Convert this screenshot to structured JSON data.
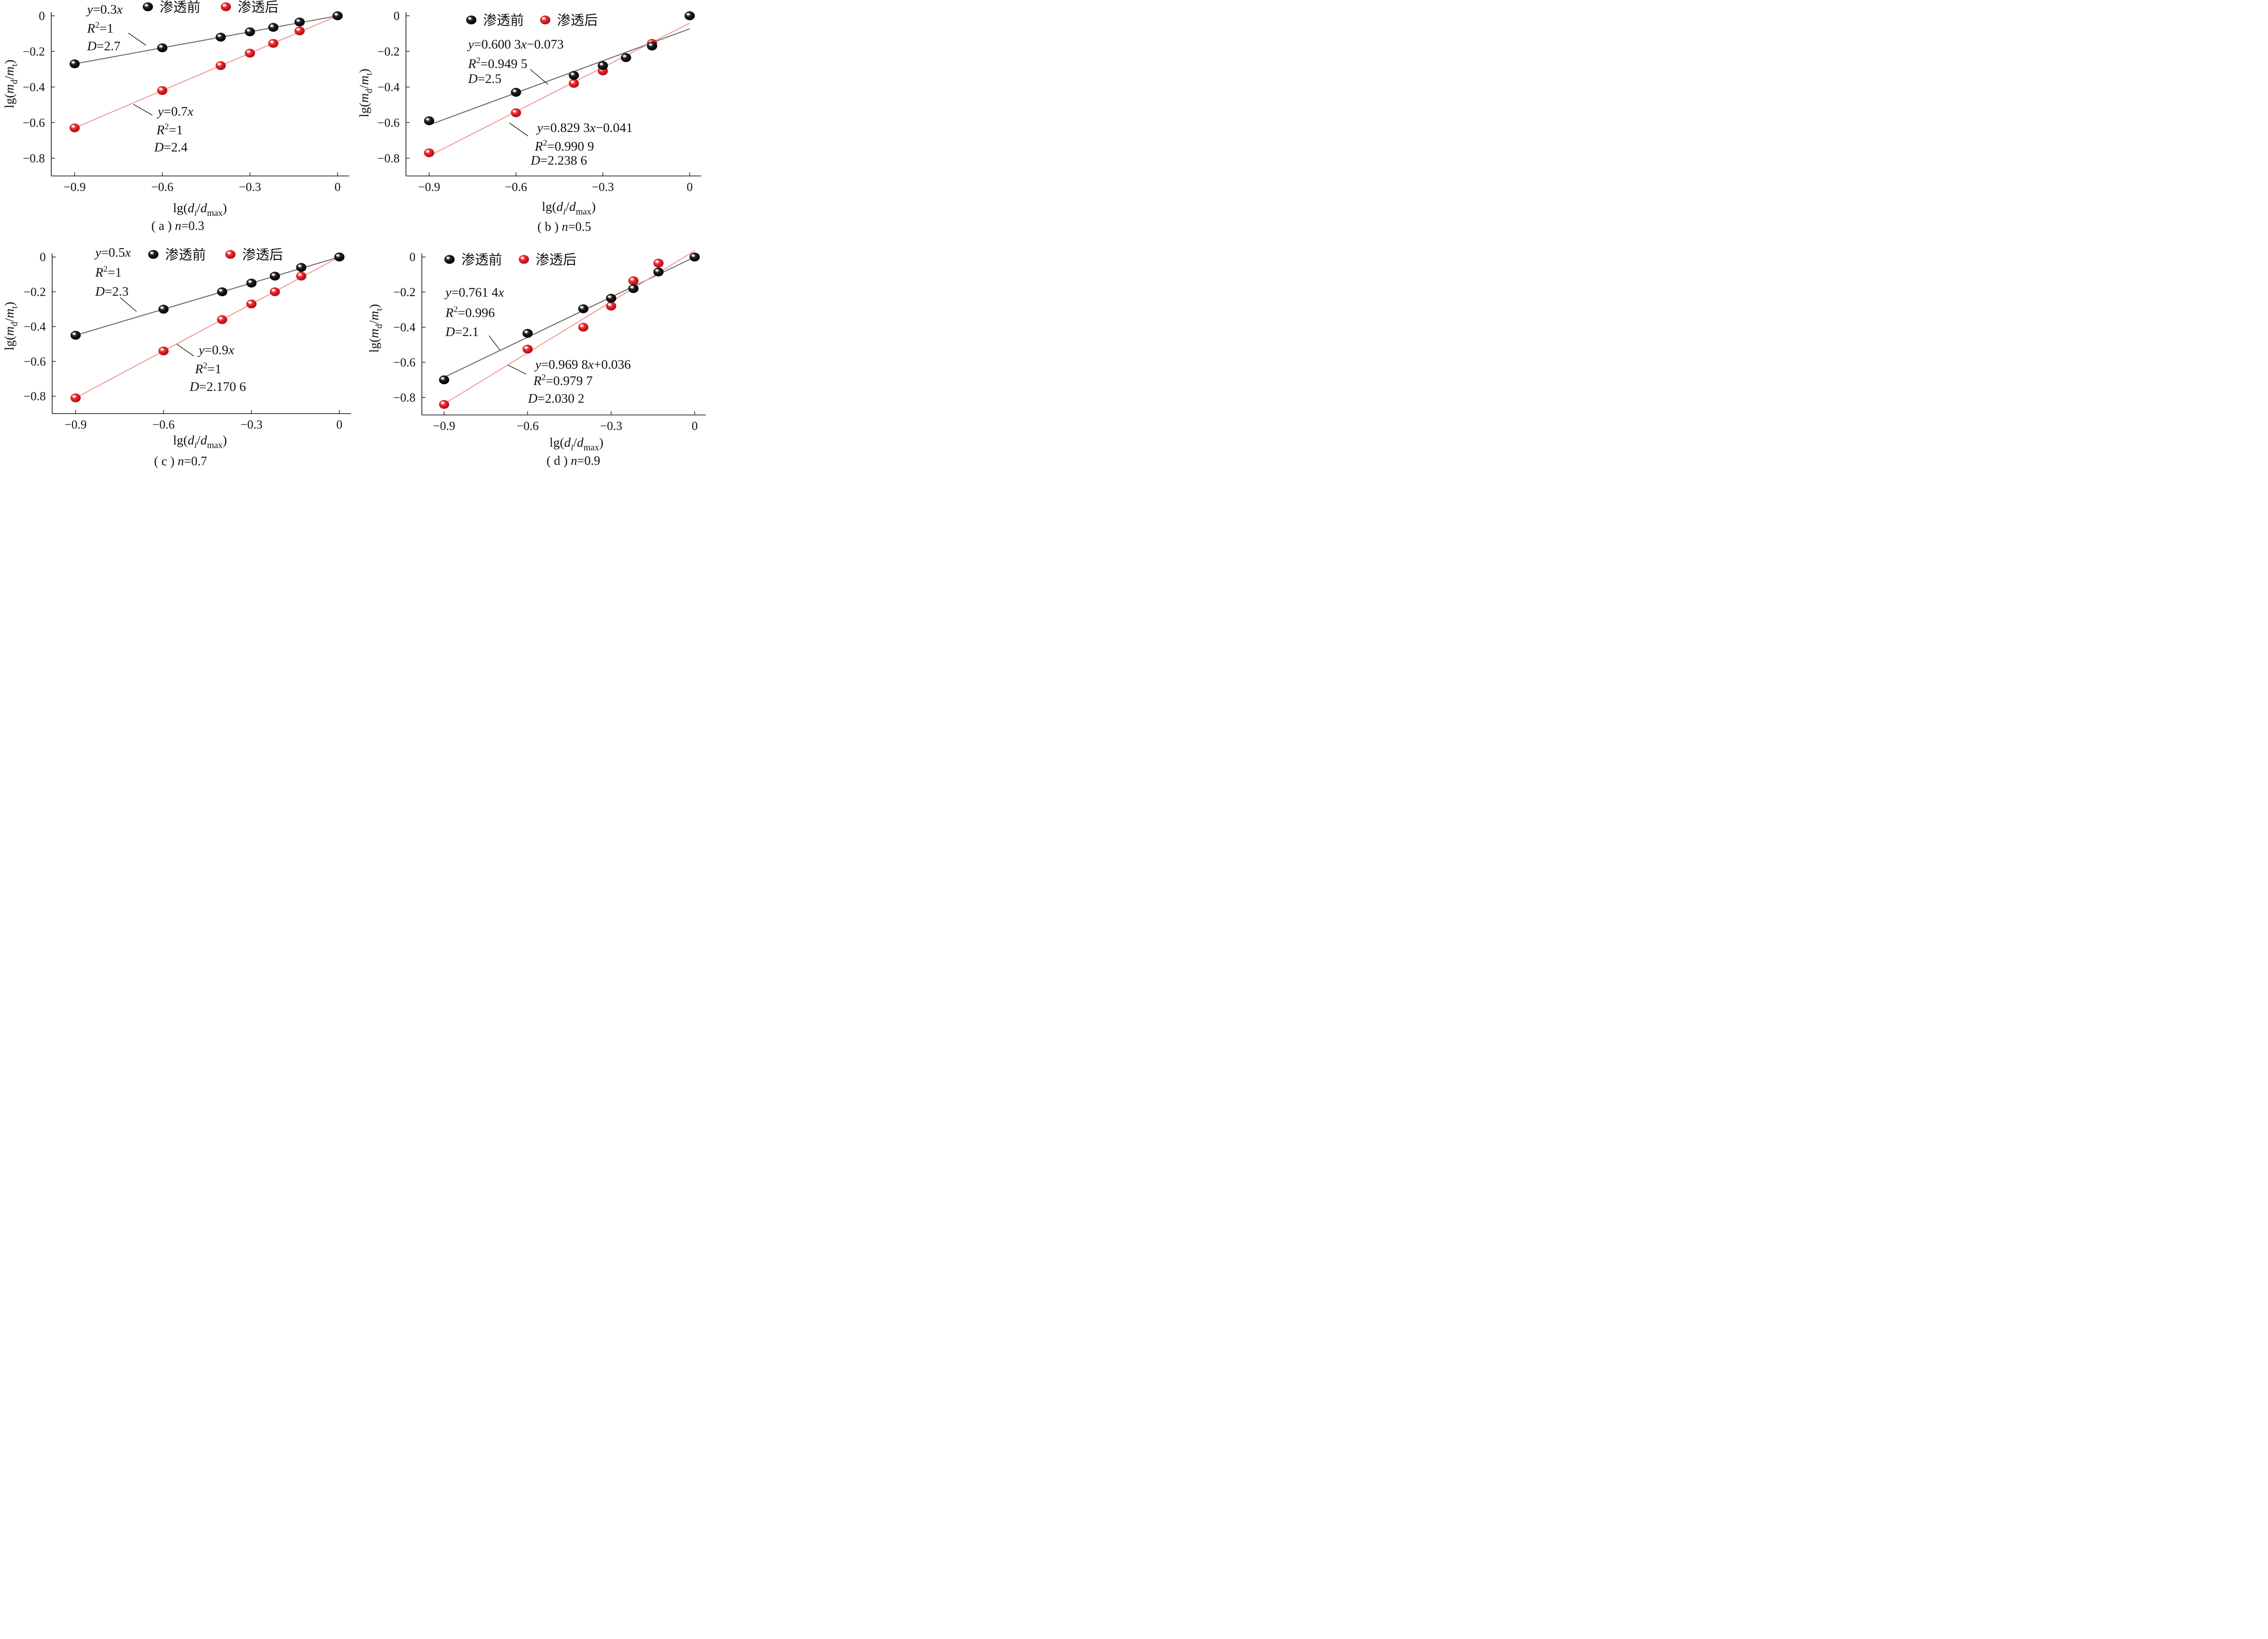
{
  "chart_data": [
    {
      "type": "scatter",
      "caption": "( a ) n=0.3",
      "caption_parts": [
        "( a ) ",
        "n",
        "=0.3"
      ],
      "xlabel": "lg(di/dmax)",
      "ylabel": "lg(md/mt)",
      "xlim": [
        -0.98,
        0.04
      ],
      "ylim": [
        -0.9,
        0.02
      ],
      "xticks": [
        -0.9,
        -0.6,
        -0.3,
        0
      ],
      "yticks": [
        0,
        -0.2,
        -0.4,
        -0.6,
        -0.8
      ],
      "xtick_labels": [
        "−0.9",
        "−0.6",
        "−0.3",
        "0"
      ],
      "ytick_labels": [
        "0",
        "−0.2",
        "−0.4",
        "−0.6",
        "−0.8"
      ],
      "legend_position": "top",
      "series": [
        {
          "name": "渗透前",
          "color": "#1a1a1a",
          "line_color": "#6b6b6b",
          "x": [
            -0.9,
            -0.6,
            -0.4,
            -0.3,
            -0.22,
            -0.13,
            0
          ],
          "y": [
            -0.27,
            -0.18,
            -0.12,
            -0.09,
            -0.065,
            -0.035,
            0
          ],
          "fit": {
            "slope": 0.3,
            "intercept": 0,
            "x_range": [
              -0.9,
              0
            ]
          },
          "annotation": [
            "y=0.3x",
            "R2=1",
            "D=2.7"
          ]
        },
        {
          "name": "渗透后",
          "color": "#e8242a",
          "line_color": "#f29b96",
          "x": [
            -0.9,
            -0.6,
            -0.4,
            -0.3,
            -0.22,
            -0.13,
            0
          ],
          "y": [
            -0.63,
            -0.42,
            -0.28,
            -0.21,
            -0.155,
            -0.085,
            0
          ],
          "fit": {
            "slope": 0.7,
            "intercept": 0,
            "x_range": [
              -0.9,
              0
            ]
          },
          "annotation": [
            "y=0.7x",
            "R2=1",
            "D=2.4"
          ]
        }
      ]
    },
    {
      "type": "scatter",
      "caption": "( b ) n=0.5",
      "caption_parts": [
        "( b ) ",
        "n",
        "=0.5"
      ],
      "xlabel": "lg(di/dmax)",
      "ylabel": "lg(md/mt)",
      "xlim": [
        -0.98,
        0.04
      ],
      "ylim": [
        -0.9,
        0.02
      ],
      "xticks": [
        -0.9,
        -0.6,
        -0.3,
        0
      ],
      "yticks": [
        0,
        -0.2,
        -0.4,
        -0.6,
        -0.8
      ],
      "xtick_labels": [
        "−0.9",
        "−0.6",
        "−0.3",
        "0"
      ],
      "ytick_labels": [
        "0",
        "−0.2",
        "−0.4",
        "−0.6",
        "−0.8"
      ],
      "legend_position": "top",
      "series": [
        {
          "name": "渗透前",
          "color": "#1a1a1a",
          "line_color": "#6b6b6b",
          "x": [
            -0.9,
            -0.6,
            -0.4,
            -0.3,
            -0.22,
            -0.13,
            0
          ],
          "y": [
            -0.59,
            -0.43,
            -0.335,
            -0.28,
            -0.235,
            -0.17,
            0
          ],
          "fit": {
            "slope": 0.6003,
            "intercept": -0.073,
            "x_range": [
              -0.9,
              0
            ]
          },
          "annotation": [
            "y=0.600 3x−0.073",
            "R2=0.949 5",
            "D=2.5"
          ]
        },
        {
          "name": "渗透后",
          "color": "#e8242a",
          "line_color": "#f29b96",
          "x": [
            -0.9,
            -0.6,
            -0.4,
            -0.3,
            -0.22,
            -0.13,
            0
          ],
          "y": [
            -0.77,
            -0.545,
            -0.38,
            -0.31,
            -0.235,
            -0.155,
            0
          ],
          "fit": {
            "slope": 0.8293,
            "intercept": -0.041,
            "x_range": [
              -0.9,
              0
            ]
          },
          "annotation": [
            "y=0.829 3x−0.041",
            "R2=0.990 9",
            "D=2.238 6"
          ]
        }
      ]
    },
    {
      "type": "scatter",
      "caption": "( c ) n=0.7",
      "caption_parts": [
        "( c ) ",
        "n",
        "=0.7"
      ],
      "xlabel": "lg(di/dmax)",
      "ylabel": "lg(md/mt)",
      "xlim": [
        -0.98,
        0.04
      ],
      "ylim": [
        -0.9,
        0.02
      ],
      "xticks": [
        -0.9,
        -0.6,
        -0.3,
        0
      ],
      "yticks": [
        0,
        -0.2,
        -0.4,
        -0.6,
        -0.8
      ],
      "xtick_labels": [
        "−0.9",
        "−0.6",
        "−0.3",
        "0"
      ],
      "ytick_labels": [
        "0",
        "−0.2",
        "−0.4",
        "−0.6",
        "−0.8"
      ],
      "legend_position": "top",
      "series": [
        {
          "name": "渗透前",
          "color": "#1a1a1a",
          "line_color": "#6b6b6b",
          "x": [
            -0.9,
            -0.6,
            -0.4,
            -0.3,
            -0.22,
            -0.13,
            0
          ],
          "y": [
            -0.45,
            -0.3,
            -0.2,
            -0.15,
            -0.11,
            -0.06,
            0
          ],
          "fit": {
            "slope": 0.5,
            "intercept": 0,
            "x_range": [
              -0.9,
              0
            ]
          },
          "annotation": [
            "y=0.5x",
            "R2=1",
            "D=2.3"
          ]
        },
        {
          "name": "渗透后",
          "color": "#e8242a",
          "line_color": "#f29b96",
          "x": [
            -0.9,
            -0.6,
            -0.4,
            -0.3,
            -0.22,
            -0.13,
            0
          ],
          "y": [
            -0.81,
            -0.54,
            -0.36,
            -0.27,
            -0.2,
            -0.11,
            0
          ],
          "fit": {
            "slope": 0.9,
            "intercept": 0,
            "x_range": [
              -0.9,
              0
            ]
          },
          "annotation": [
            "y=0.9x",
            "R2=1",
            "D=2.170 6"
          ]
        }
      ]
    },
    {
      "type": "scatter",
      "caption": "( d ) n=0.9",
      "caption_parts": [
        "( d ) ",
        "n",
        "=0.9"
      ],
      "xlabel": "lg(di/dmax)",
      "ylabel": "lg(md/mt)",
      "xlim": [
        -0.98,
        0.04
      ],
      "ylim": [
        -0.9,
        0.02
      ],
      "xticks": [
        -0.9,
        -0.6,
        -0.3,
        0
      ],
      "yticks": [
        0,
        -0.2,
        -0.4,
        -0.6,
        -0.8
      ],
      "xtick_labels": [
        "−0.9",
        "−0.6",
        "−0.3",
        "0"
      ],
      "ytick_labels": [
        "0",
        "−0.2",
        "−0.4",
        "−0.6",
        "−0.8"
      ],
      "legend_position": "top",
      "series": [
        {
          "name": "渗透前",
          "color": "#1a1a1a",
          "line_color": "#6b6b6b",
          "x": [
            -0.9,
            -0.6,
            -0.4,
            -0.3,
            -0.22,
            -0.13,
            0
          ],
          "y": [
            -0.7,
            -0.435,
            -0.295,
            -0.235,
            -0.18,
            -0.085,
            0
          ],
          "fit": {
            "slope": 0.7614,
            "intercept": 0,
            "x_range": [
              -0.9,
              0
            ]
          },
          "annotation": [
            "y=0.761 4x",
            "R2=0.996",
            "D=2.1"
          ]
        },
        {
          "name": "渗透后",
          "color": "#e8242a",
          "line_color": "#f29b96",
          "x": [
            -0.9,
            -0.6,
            -0.4,
            -0.3,
            -0.22,
            -0.13,
            0
          ],
          "y": [
            -0.84,
            -0.525,
            -0.4,
            -0.28,
            -0.135,
            -0.035,
            0
          ],
          "fit": {
            "slope": 0.9698,
            "intercept": 0.036,
            "x_range": [
              -0.9,
              0
            ]
          },
          "annotation": [
            "y=0.969 8x+0.036",
            "R2=0.979 7",
            "D=2.030 2"
          ]
        }
      ]
    }
  ]
}
